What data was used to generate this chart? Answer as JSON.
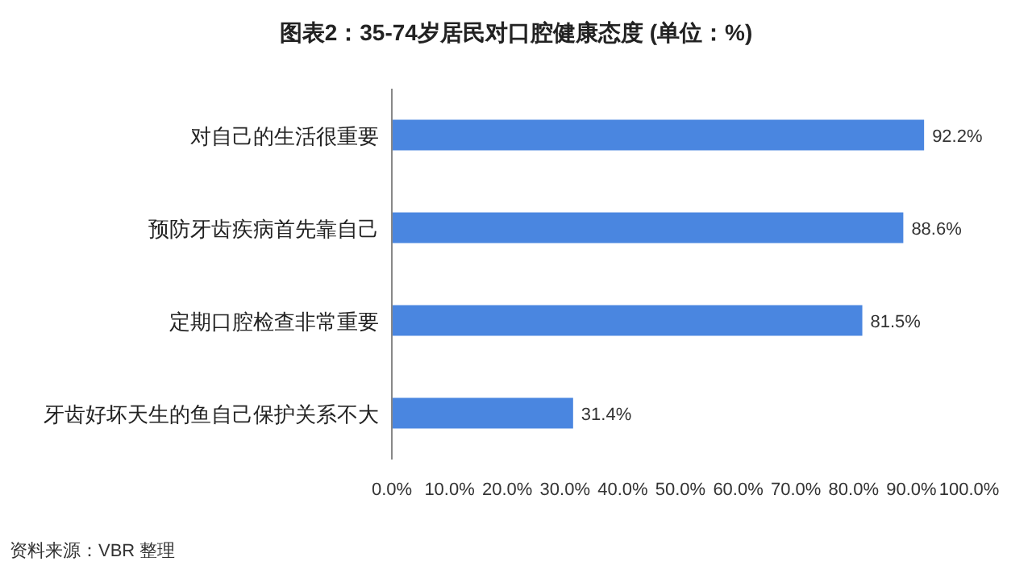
{
  "chart_data": {
    "type": "bar",
    "orientation": "horizontal",
    "title": "图表2：35-74岁居民对口腔健康态度 (单位：%)",
    "categories": [
      "对自己的生活很重要",
      "预防牙齿疾病首先靠自己",
      "定期口腔检查非常重要",
      "牙齿好坏天生的鱼自己保护关系不大"
    ],
    "values": [
      92.2,
      88.6,
      81.5,
      31.4
    ],
    "value_labels": [
      "92.2%",
      "88.6%",
      "81.5%",
      "31.4%"
    ],
    "color": "#4a86e0",
    "xlim": [
      0,
      100
    ],
    "xticks": [
      {
        "value": 0,
        "label": "0.0%"
      },
      {
        "value": 10,
        "label": "10.0%"
      },
      {
        "value": 20,
        "label": "20.0%"
      },
      {
        "value": 30,
        "label": "30.0%"
      },
      {
        "value": 40,
        "label": "40.0%"
      },
      {
        "value": 50,
        "label": "50.0%"
      },
      {
        "value": 60,
        "label": "60.0%"
      },
      {
        "value": 70,
        "label": "70.0%"
      },
      {
        "value": 80,
        "label": "80.0%"
      },
      {
        "value": 90,
        "label": "90.0%"
      },
      {
        "value": 100,
        "label": "100.0%"
      }
    ],
    "grid": false,
    "annotations": [
      "资料来源：VBR 整理"
    ]
  }
}
